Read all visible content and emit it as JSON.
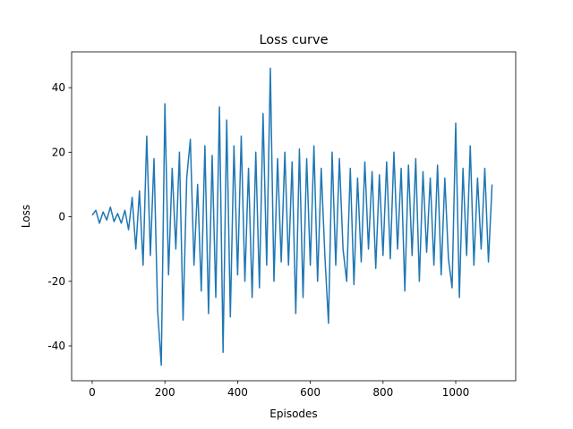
{
  "chart_data": {
    "type": "line",
    "title": "Loss curve",
    "x_label": "Episodes",
    "y_label": "Loss",
    "x": [
      0,
      10,
      20,
      30,
      40,
      50,
      60,
      70,
      80,
      90,
      100,
      110,
      120,
      130,
      140,
      150,
      160,
      170,
      180,
      190,
      200,
      210,
      220,
      230,
      240,
      250,
      260,
      270,
      280,
      290,
      300,
      310,
      320,
      330,
      340,
      350,
      360,
      370,
      380,
      390,
      400,
      410,
      420,
      430,
      440,
      450,
      460,
      470,
      480,
      490,
      500,
      510,
      520,
      530,
      540,
      550,
      560,
      570,
      580,
      590,
      600,
      610,
      620,
      630,
      640,
      650,
      660,
      670,
      680,
      690,
      700,
      710,
      720,
      730,
      740,
      750,
      760,
      770,
      780,
      790,
      800,
      810,
      820,
      830,
      840,
      850,
      860,
      870,
      880,
      890,
      900,
      910,
      920,
      930,
      940,
      950,
      960,
      970,
      980,
      990,
      1000,
      1010,
      1020,
      1030,
      1040,
      1050,
      1060,
      1070,
      1080,
      1090,
      1100
    ],
    "series": [
      {
        "name": "Loss",
        "color": "#1f77b4",
        "values": [
          0.5,
          2,
          -2,
          1.5,
          -1,
          3,
          -1.5,
          1,
          -2,
          2,
          -4,
          6,
          -10,
          8,
          -15,
          25,
          -12,
          18,
          -29,
          -46,
          35,
          -18,
          15,
          -10,
          20,
          -32,
          12,
          24,
          -15,
          10,
          -23,
          22,
          -30,
          19,
          -25,
          34,
          -42,
          30,
          -31,
          22,
          -18,
          25,
          -20,
          15,
          -25,
          20,
          -22,
          32,
          -15,
          46,
          -20,
          18,
          -14,
          20,
          -15,
          17,
          -30,
          21,
          -25,
          18,
          -15,
          22,
          -20,
          15,
          -12,
          -33,
          20,
          -15,
          18,
          -10,
          -20,
          15,
          -21,
          12,
          -14,
          17,
          -10,
          14,
          -16,
          13,
          -12,
          17,
          -13,
          20,
          -10,
          15,
          -23,
          16,
          -12,
          18,
          -20,
          14,
          -11,
          12,
          -15,
          16,
          -18,
          12,
          -13,
          -22,
          29,
          -25,
          15,
          -12,
          22,
          -15,
          12,
          -10,
          15,
          -14,
          10
        ]
      }
    ],
    "xlim": [
      -56.6,
      1165
    ],
    "ylim": [
      -50.8,
      51.1
    ],
    "xticks": [
      0,
      200,
      400,
      600,
      800,
      1000
    ],
    "yticks": [
      -40,
      -20,
      0,
      20,
      40
    ]
  }
}
